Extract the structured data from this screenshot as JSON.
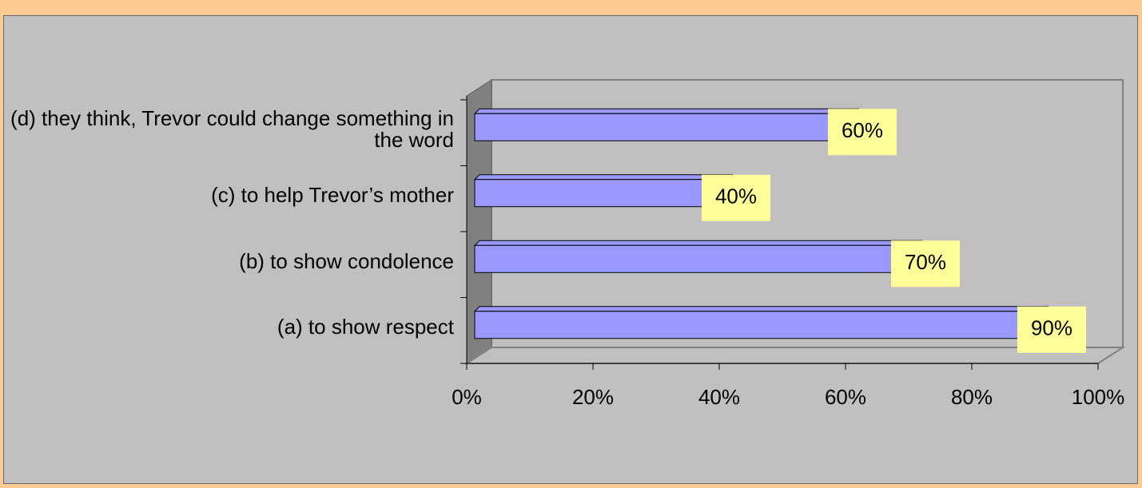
{
  "chart_data": {
    "type": "bar3d_horizontal",
    "categories": [
      "(a) to show respect",
      "(b) to show condolence",
      "(c) to help Trevor’s mother",
      "(d) they think, Trevor could change something in the word"
    ],
    "values": [
      90,
      70,
      40,
      60
    ],
    "value_labels": [
      "90%",
      "70%",
      "40%",
      "60%"
    ],
    "color": "#9999ff",
    "label_color": "#ffff99",
    "xlim": [
      0,
      100
    ],
    "xticks": [
      {
        "value": 0,
        "label": "0%"
      },
      {
        "value": 20,
        "label": "20%"
      },
      {
        "value": 40,
        "label": "40%"
      },
      {
        "value": 60,
        "label": "60%"
      },
      {
        "value": 80,
        "label": "80%"
      },
      {
        "value": 100,
        "label": "100%"
      }
    ]
  }
}
